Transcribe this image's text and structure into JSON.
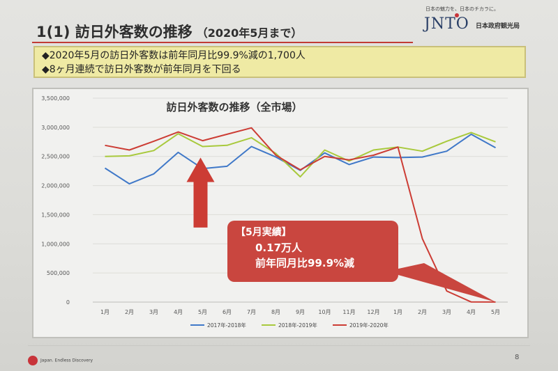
{
  "slide": {
    "title": "1(1) 訪日外客数の推移",
    "subtitle": "（2020年5月まで）",
    "logo": {
      "tagline": "日本の魅力を、日本のチカラに。",
      "mark": "JNTO",
      "org": "日本政府観光局"
    },
    "bullets": [
      "◆2020年5月の訪日外客数は前年同月比99.9%減の1,700人",
      "◆8ヶ月連続で訪日外客数が前年同月を下回る"
    ],
    "callout": {
      "line1": "【5月実績】",
      "line2": "0.17万人",
      "line3": "前年同月比99.9%減"
    },
    "footer_brand": "Japan. Endless Discovery",
    "page_number": "8"
  },
  "chart_data": {
    "type": "line",
    "title": "訪日外客数の推移（全市場）",
    "categories": [
      "1月",
      "2月",
      "3月",
      "4月",
      "5月",
      "6月",
      "7月",
      "8月",
      "9月",
      "10月",
      "11月",
      "12月",
      "1月",
      "2月",
      "3月",
      "4月",
      "5月"
    ],
    "ylim": [
      0,
      3500000
    ],
    "yticks": [
      0,
      500000,
      1000000,
      1500000,
      2000000,
      2500000,
      3000000,
      3500000
    ],
    "ytick_labels": [
      "0",
      "500,000",
      "1,000,000",
      "1,500,000",
      "2,000,000",
      "2,500,000",
      "3,000,000",
      "3,500,000"
    ],
    "grid": true,
    "legend": "bottom",
    "series": [
      {
        "name": "2017年-2018年",
        "color": "#3f78c8",
        "values": [
          2300000,
          2030000,
          2200000,
          2570000,
          2290000,
          2330000,
          2670000,
          2490000,
          2260000,
          2560000,
          2360000,
          2490000,
          2480000,
          2490000,
          2590000,
          2880000,
          2650000
        ]
      },
      {
        "name": "2018年-2019年",
        "color": "#a8c93c",
        "values": [
          2500000,
          2510000,
          2600000,
          2890000,
          2670000,
          2690000,
          2820000,
          2550000,
          2150000,
          2610000,
          2420000,
          2610000,
          2660000,
          2590000,
          2760000,
          2910000,
          2750000
        ]
      },
      {
        "name": "2019年-2020年",
        "color": "#cc3c34",
        "values": [
          2690000,
          2610000,
          2760000,
          2920000,
          2770000,
          2880000,
          2990000,
          2520000,
          2270000,
          2500000,
          2440000,
          2520000,
          2660000,
          1090000,
          190000,
          2900,
          1700
        ]
      }
    ]
  }
}
